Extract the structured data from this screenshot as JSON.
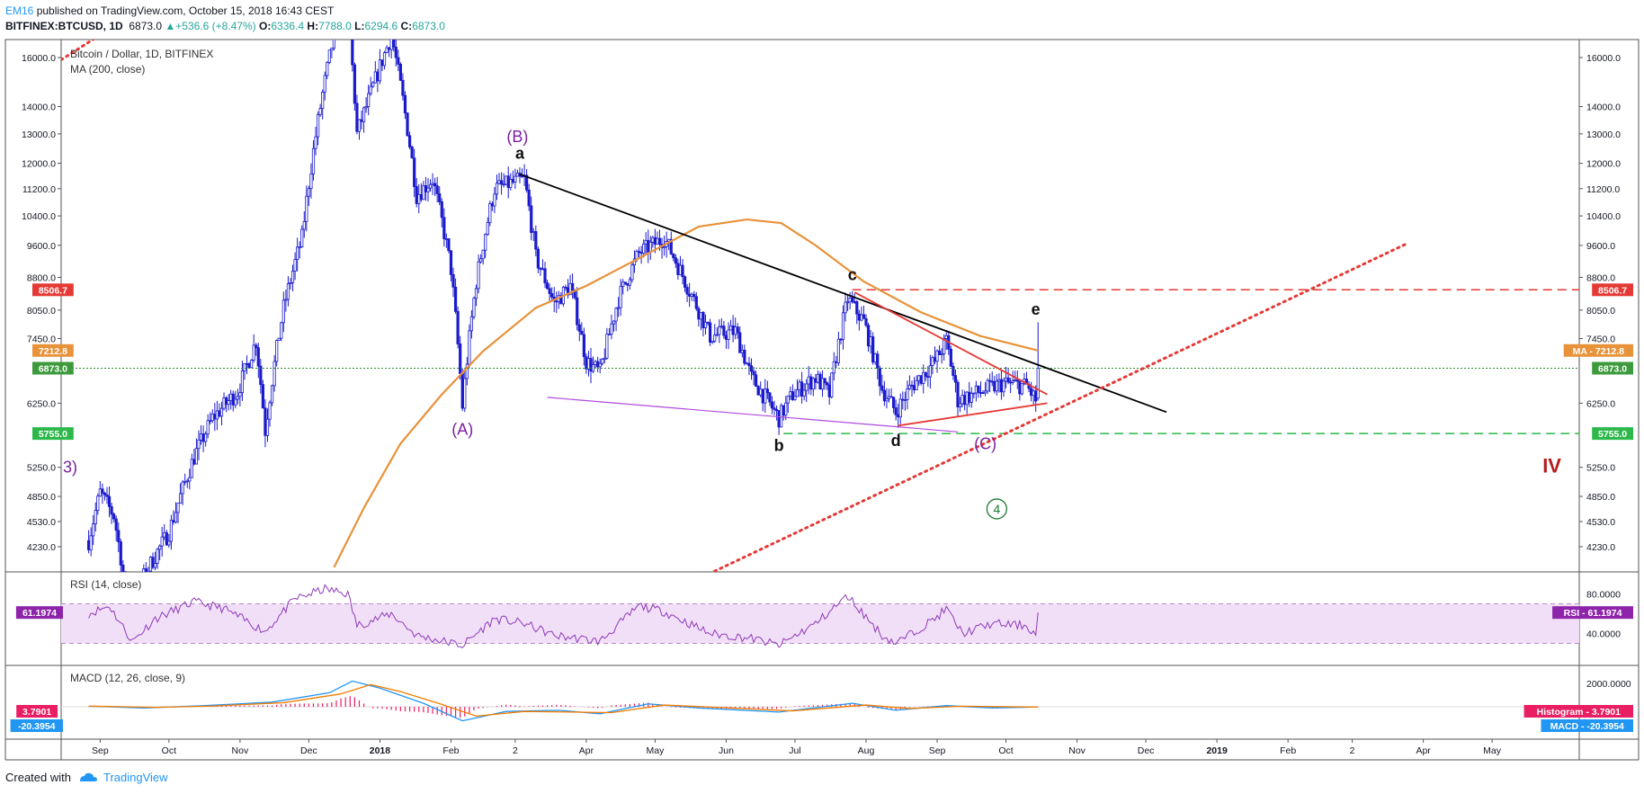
{
  "header": {
    "author": "EM16",
    "published_text": "published on TradingView.com, October 15, 2018 16:43 CEST",
    "symbol": "BITFINEX:BTCUSD, 1D",
    "last": "6873.0",
    "change": "+536.6 (+8.47%)",
    "ohlc": {
      "O": "6336.4",
      "H": "7788.0",
      "L": "6294.6",
      "C": "6873.0"
    }
  },
  "footer": {
    "created_with": "Created with",
    "brand": "TradingView"
  },
  "colors": {
    "candles": "#1a1acc",
    "ma": "#e8923a",
    "rsi": "#8e3ab8",
    "rsi_band": "#f1dff8",
    "macd": "#2196f3",
    "signal": "#f57c00",
    "hist": "#e91e63",
    "resistance": "#e53935",
    "support": "#2db84b",
    "trendline": "#000000",
    "wave_label": "#7b1fa2",
    "wave4": "#1b7a2d",
    "wave_iv": "#b71c1c"
  },
  "chart_data": {
    "type": "candlestick",
    "title": "Bitcoin / Dollar, 1D, BITFINEX",
    "indicator_ma": "MA (200, close)",
    "y_scale": "log",
    "ylim": [
      3950,
      16800
    ],
    "yticks": [
      "16000.0",
      "14000.0",
      "13000.0",
      "12000.0",
      "11200.0",
      "10400.0",
      "9600.0",
      "8800.0",
      "8050.0",
      "7450.0",
      "6250.0",
      "5250.0",
      "4850.0",
      "4530.0",
      "4230.0"
    ],
    "xticks": [
      "Sep",
      "Oct",
      "Nov",
      "Dec",
      "2018",
      "Feb",
      "2",
      "Apr",
      "May",
      "Jun",
      "Jul",
      "Aug",
      "Sep",
      "Oct",
      "Nov",
      "Dec",
      "2019",
      "Feb",
      "2",
      "Apr",
      "May"
    ],
    "price_series": [
      [
        "2017-08-27",
        4300
      ],
      [
        "2017-09-01",
        4900
      ],
      [
        "2017-09-07",
        4600
      ],
      [
        "2017-09-15",
        3300
      ],
      [
        "2017-09-20",
        3900
      ],
      [
        "2017-10-01",
        4400
      ],
      [
        "2017-10-12",
        5400
      ],
      [
        "2017-10-20",
        6000
      ],
      [
        "2017-10-31",
        6450
      ],
      [
        "2017-11-08",
        7400
      ],
      [
        "2017-11-12",
        5800
      ],
      [
        "2017-11-20",
        8100
      ],
      [
        "2017-11-28",
        9800
      ],
      [
        "2017-12-07",
        14500
      ],
      [
        "2017-12-12",
        17000
      ],
      [
        "2017-12-17",
        19500
      ],
      [
        "2017-12-22",
        13000
      ],
      [
        "2017-12-28",
        14500
      ],
      [
        "2018-01-06",
        17000
      ],
      [
        "2018-01-17",
        11000
      ],
      [
        "2018-01-24",
        11500
      ],
      [
        "2018-02-01",
        9000
      ],
      [
        "2018-02-06",
        6200
      ],
      [
        "2018-02-12",
        8700
      ],
      [
        "2018-02-20",
        11200
      ],
      [
        "2018-03-05",
        11500
      ],
      [
        "2018-03-10",
        9300
      ],
      [
        "2018-03-18",
        8200
      ],
      [
        "2018-03-25",
        8600
      ],
      [
        "2018-04-01",
        7000
      ],
      [
        "2018-04-07",
        6800
      ],
      [
        "2018-04-15",
        8300
      ],
      [
        "2018-04-24",
        9400
      ],
      [
        "2018-05-05",
        9800
      ],
      [
        "2018-05-15",
        8600
      ],
      [
        "2018-05-25",
        7500
      ],
      [
        "2018-06-05",
        7600
      ],
      [
        "2018-06-12",
        6700
      ],
      [
        "2018-06-24",
        6000
      ],
      [
        "2018-06-30",
        6400
      ],
      [
        "2018-07-10",
        6700
      ],
      [
        "2018-07-16",
        6400
      ],
      [
        "2018-07-24",
        8300
      ],
      [
        "2018-07-31",
        7800
      ],
      [
        "2018-08-08",
        6500
      ],
      [
        "2018-08-14",
        6100
      ],
      [
        "2018-08-20",
        6500
      ],
      [
        "2018-08-31",
        7000
      ],
      [
        "2018-09-05",
        7400
      ],
      [
        "2018-09-10",
        6300
      ],
      [
        "2018-09-20",
        6450
      ],
      [
        "2018-09-30",
        6600
      ],
      [
        "2018-10-10",
        6550
      ],
      [
        "2018-10-14",
        6300
      ],
      [
        "2018-10-15",
        6873
      ]
    ],
    "ma200_series": [
      [
        "2017-12-12",
        4000
      ],
      [
        "2017-12-25",
        4700
      ],
      [
        "2018-01-10",
        5600
      ],
      [
        "2018-01-28",
        6400
      ],
      [
        "2018-02-15",
        7200
      ],
      [
        "2018-03-10",
        8100
      ],
      [
        "2018-04-01",
        8600
      ],
      [
        "2018-04-25",
        9300
      ],
      [
        "2018-05-20",
        10100
      ],
      [
        "2018-06-10",
        10300
      ],
      [
        "2018-06-25",
        10200
      ],
      [
        "2018-07-10",
        9600
      ],
      [
        "2018-07-31",
        8700
      ],
      [
        "2018-08-25",
        8000
      ],
      [
        "2018-09-20",
        7500
      ],
      [
        "2018-10-15",
        7212.8
      ]
    ],
    "levels": [
      {
        "name": "resistance",
        "price": 8506.7,
        "label": "8506.7",
        "style": "dashed"
      },
      {
        "name": "MA",
        "price": 7212.8,
        "label": "7212.8",
        "right_label": "MA"
      },
      {
        "name": "last",
        "price": 6873.0,
        "label": "6873.0",
        "style": "dotted"
      },
      {
        "name": "support",
        "price": 5755.0,
        "label": "5755.0",
        "style": "dashed"
      }
    ],
    "trendlines": [
      {
        "name": "descending",
        "from": [
          "2018-03-03",
          11650
        ],
        "to": [
          "2018-12-10",
          6100
        ],
        "style": "solid"
      },
      {
        "name": "triangle-upper",
        "from": [
          "2018-07-27",
          8450
        ],
        "to": [
          "2018-10-19",
          6400
        ],
        "style": "solid"
      },
      {
        "name": "triangle-lower",
        "from": [
          "2018-08-15",
          5880
        ],
        "to": [
          "2018-10-19",
          6250
        ],
        "style": "solid"
      },
      {
        "name": "wedge-lower",
        "from": [
          "2018-03-15",
          6350
        ],
        "to": [
          "2018-09-10",
          5780
        ],
        "style": "solid"
      },
      {
        "name": "rising",
        "from": [
          "2018-05-22",
          3900
        ],
        "to": [
          "2019-03-25",
          9650
        ],
        "style": "dotted"
      }
    ],
    "annotations": [
      {
        "text": "(B)",
        "x": "2018-03-02",
        "y": 12900,
        "kind": "wave"
      },
      {
        "text": "a",
        "x": "2018-03-03",
        "y": 12150,
        "kind": "sub"
      },
      {
        "text": "(A)",
        "x": "2018-02-06",
        "y": 5820,
        "kind": "wave"
      },
      {
        "text": "b",
        "x": "2018-06-24",
        "y": 5490,
        "kind": "sub"
      },
      {
        "text": "c",
        "x": "2018-07-26",
        "y": 8730,
        "kind": "sub"
      },
      {
        "text": "d",
        "x": "2018-08-14",
        "y": 5560,
        "kind": "sub"
      },
      {
        "text": "(C)",
        "x": "2018-09-22",
        "y": 5600,
        "kind": "wave"
      },
      {
        "text": "e",
        "x": "2018-10-14",
        "y": 7950,
        "kind": "sub"
      },
      {
        "text": "4",
        "x": "2018-09-27",
        "y": 4620,
        "kind": "circle"
      },
      {
        "text": "IV",
        "x": "2019-05-23",
        "y": 5250,
        "kind": "major"
      },
      {
        "text": "3)",
        "x": "2017-08-27",
        "y": 5250,
        "kind": "wave"
      }
    ],
    "rsi": {
      "label": "RSI (14, close)",
      "current": "61.1974",
      "right_tag": "RSI",
      "levels": [
        70,
        30
      ],
      "yticks": [
        "80.0000",
        "40.0000"
      ],
      "series": [
        [
          "2017-08-27",
          60
        ],
        [
          "2017-09-05",
          68
        ],
        [
          "2017-09-15",
          32
        ],
        [
          "2017-09-25",
          55
        ],
        [
          "2017-10-12",
          72
        ],
        [
          "2017-10-25",
          65
        ],
        [
          "2017-11-12",
          42
        ],
        [
          "2017-11-25",
          75
        ],
        [
          "2017-12-08",
          85
        ],
        [
          "2017-12-18",
          80
        ],
        [
          "2017-12-22",
          48
        ],
        [
          "2018-01-06",
          60
        ],
        [
          "2018-01-17",
          38
        ],
        [
          "2018-02-06",
          28
        ],
        [
          "2018-02-20",
          55
        ],
        [
          "2018-03-05",
          50
        ],
        [
          "2018-03-18",
          38
        ],
        [
          "2018-04-07",
          32
        ],
        [
          "2018-04-24",
          68
        ],
        [
          "2018-05-05",
          62
        ],
        [
          "2018-05-25",
          40
        ],
        [
          "2018-06-12",
          35
        ],
        [
          "2018-06-24",
          28
        ],
        [
          "2018-07-10",
          50
        ],
        [
          "2018-07-24",
          78
        ],
        [
          "2018-08-08",
          38
        ],
        [
          "2018-08-14",
          30
        ],
        [
          "2018-08-31",
          55
        ],
        [
          "2018-09-05",
          65
        ],
        [
          "2018-09-12",
          40
        ],
        [
          "2018-09-25",
          50
        ],
        [
          "2018-10-10",
          48
        ],
        [
          "2018-10-14",
          38
        ],
        [
          "2018-10-15",
          61.2
        ]
      ]
    },
    "macd": {
      "label": "MACD (12, 26, close, 9)",
      "histogram_label": "Histogram",
      "histogram_value": "3.7901",
      "macd_label": "MACD",
      "macd_value": "-20.3954",
      "yticks": [
        "2000.0000"
      ],
      "series": [
        [
          "2017-08-27",
          50
        ],
        [
          "2017-09-20",
          -100
        ],
        [
          "2017-10-15",
          80
        ],
        [
          "2017-11-15",
          400
        ],
        [
          "2017-12-10",
          1200
        ],
        [
          "2017-12-20",
          2200
        ],
        [
          "2018-01-01",
          1600
        ],
        [
          "2018-01-20",
          300
        ],
        [
          "2018-02-06",
          -1200
        ],
        [
          "2018-02-25",
          -400
        ],
        [
          "2018-03-20",
          -300
        ],
        [
          "2018-04-07",
          -600
        ],
        [
          "2018-04-28",
          250
        ],
        [
          "2018-05-20",
          -100
        ],
        [
          "2018-06-24",
          -450
        ],
        [
          "2018-07-26",
          300
        ],
        [
          "2018-08-14",
          -300
        ],
        [
          "2018-09-05",
          100
        ],
        [
          "2018-09-25",
          -100
        ],
        [
          "2018-10-15",
          -20.4
        ]
      ],
      "signal": [
        [
          "2017-08-27",
          60
        ],
        [
          "2017-09-25",
          -50
        ],
        [
          "2017-10-20",
          60
        ],
        [
          "2017-11-20",
          350
        ],
        [
          "2017-12-15",
          1100
        ],
        [
          "2017-12-28",
          1900
        ],
        [
          "2018-01-10",
          1300
        ],
        [
          "2018-01-28",
          200
        ],
        [
          "2018-02-12",
          -800
        ],
        [
          "2018-03-05",
          -400
        ],
        [
          "2018-04-12",
          -500
        ],
        [
          "2018-05-05",
          150
        ],
        [
          "2018-05-28",
          -50
        ],
        [
          "2018-06-30",
          -350
        ],
        [
          "2018-08-01",
          150
        ],
        [
          "2018-08-20",
          -150
        ],
        [
          "2018-09-12",
          50
        ],
        [
          "2018-10-15",
          -24.2
        ]
      ]
    }
  }
}
